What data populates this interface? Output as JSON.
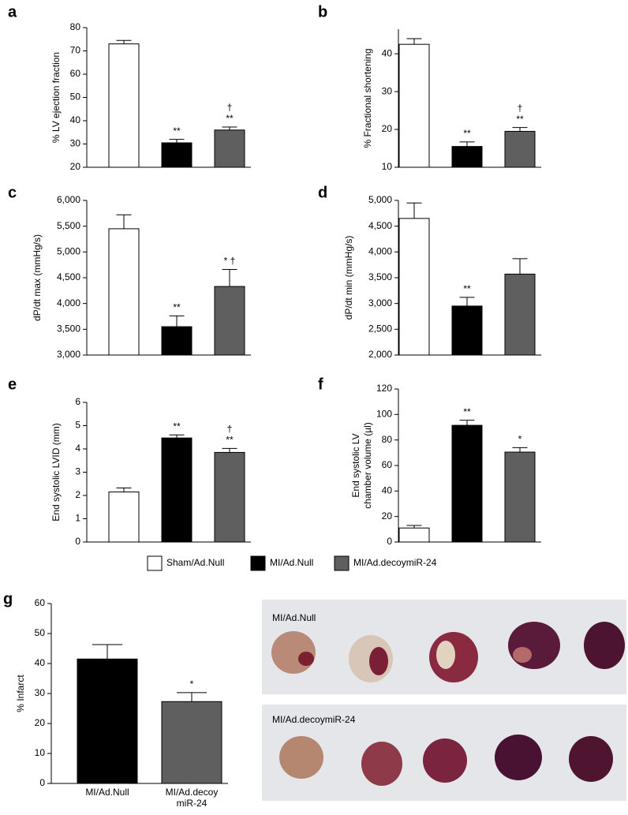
{
  "chart_data": [
    {
      "type": "bar",
      "panel": "a",
      "ylabel": "% LV ejection fraction",
      "categories": [
        null,
        null,
        null
      ],
      "values": [
        73,
        30.5,
        36
      ],
      "errors": [
        1.5,
        1.5,
        1.3
      ],
      "colors": [
        "#ffffff",
        "#000000",
        "#5f5f5f"
      ],
      "annotations": [
        [],
        [
          "**"
        ],
        [
          "†",
          "**"
        ]
      ],
      "ylim": [
        20,
        80
      ],
      "yticks": [
        20,
        30,
        40,
        50,
        60,
        70,
        80
      ]
    },
    {
      "type": "bar",
      "panel": "b",
      "ylabel": "% Fractional shortening",
      "categories": [
        null,
        null,
        null
      ],
      "values": [
        42.5,
        15.5,
        19.5
      ],
      "errors": [
        1.5,
        1.2,
        1
      ],
      "colors": [
        "#ffffff",
        "#000000",
        "#5f5f5f"
      ],
      "annotations": [
        [],
        [
          "**"
        ],
        [
          "†",
          "**"
        ]
      ],
      "ylim": [
        10,
        46.5
      ],
      "yticks": [
        10,
        20,
        30,
        40
      ]
    },
    {
      "type": "bar",
      "panel": "c",
      "ylabel": "dP/dt max (mmHg/s)",
      "categories": [
        null,
        null,
        null
      ],
      "values": [
        5450,
        3550,
        4330
      ],
      "errors": [
        270,
        210,
        330
      ],
      "colors": [
        "#ffffff",
        "#000000",
        "#5f5f5f"
      ],
      "annotations": [
        [],
        [
          "**"
        ],
        [
          "* †"
        ]
      ],
      "ylim": [
        3000,
        6000
      ],
      "yticks": [
        {
          "value": 3000,
          "label": "3,000"
        },
        {
          "value": 3500,
          "label": "3,500"
        },
        {
          "value": 4000,
          "label": "4,000"
        },
        {
          "value": 4500,
          "label": "4,500"
        },
        {
          "value": 5000,
          "label": "5,000"
        },
        {
          "value": 5500,
          "label": "5,500"
        },
        {
          "value": 6000,
          "label": "6,000"
        }
      ]
    },
    {
      "type": "bar",
      "panel": "d",
      "ylabel": "dP/dt min (mmHg/s)",
      "categories": [
        null,
        null,
        null
      ],
      "values": [
        4650,
        2950,
        3570
      ],
      "errors": [
        300,
        170,
        300
      ],
      "colors": [
        "#ffffff",
        "#000000",
        "#5f5f5f"
      ],
      "annotations": [
        [],
        [
          "**"
        ],
        []
      ],
      "ylim": [
        2000,
        5000
      ],
      "yticks": [
        {
          "value": 2000,
          "label": "2,000"
        },
        {
          "value": 2500,
          "label": "2,500"
        },
        {
          "value": 3000,
          "label": "3,000"
        },
        {
          "value": 3500,
          "label": "3,500"
        },
        {
          "value": 4000,
          "label": "4,000"
        },
        {
          "value": 4500,
          "label": "4,500"
        },
        {
          "value": 5000,
          "label": "5,000"
        }
      ]
    },
    {
      "type": "bar",
      "panel": "e",
      "ylabel": "End systolic LVID (mm)",
      "categories": [
        null,
        null,
        null
      ],
      "values": [
        2.15,
        4.47,
        3.85
      ],
      "errors": [
        0.17,
        0.13,
        0.17
      ],
      "colors": [
        "#ffffff",
        "#000000",
        "#5f5f5f"
      ],
      "annotations": [
        [],
        [
          "**"
        ],
        [
          "†",
          "**"
        ]
      ],
      "ylim": [
        0,
        6
      ],
      "yticks": [
        0,
        1,
        2,
        3,
        4,
        5,
        6
      ]
    },
    {
      "type": "bar",
      "panel": "f",
      "ylabel": [
        "End systolic LV",
        "chamber volume (µl)"
      ],
      "categories": [
        null,
        null,
        null
      ],
      "values": [
        11,
        91.5,
        70.5
      ],
      "errors": [
        2,
        4,
        3.5
      ],
      "colors": [
        "#ffffff",
        "#000000",
        "#5f5f5f"
      ],
      "annotations": [
        [],
        [
          "**"
        ],
        [
          "*"
        ]
      ],
      "ylim": [
        0,
        120
      ],
      "yticks": [
        0,
        20,
        40,
        60,
        80,
        100,
        120
      ]
    },
    {
      "type": "bar",
      "panel": "g",
      "ylabel": "% Infarct",
      "categories": [
        [
          "MI/Ad.Null"
        ],
        [
          "MI/Ad.decoy",
          "miR-24"
        ]
      ],
      "values": [
        41.5,
        27.3
      ],
      "errors": [
        4.8,
        3
      ],
      "colors": [
        "#000000",
        "#5f5f5f"
      ],
      "annotations": [
        [],
        [
          "*"
        ]
      ],
      "ylim": [
        0,
        60
      ],
      "yticks": [
        0,
        10,
        20,
        30,
        40,
        50,
        60
      ]
    }
  ],
  "legend": [
    {
      "name": "Sham/Ad.Null",
      "color": "#ffffff"
    },
    {
      "name": "MI/Ad.Null",
      "color": "#000000"
    },
    {
      "name": "MI/Ad.decoymiR-24",
      "color": "#5f5f5f"
    }
  ],
  "photos": [
    {
      "label": "MI/Ad.Null"
    },
    {
      "label": "MI/Ad.decoymiR-24"
    }
  ]
}
